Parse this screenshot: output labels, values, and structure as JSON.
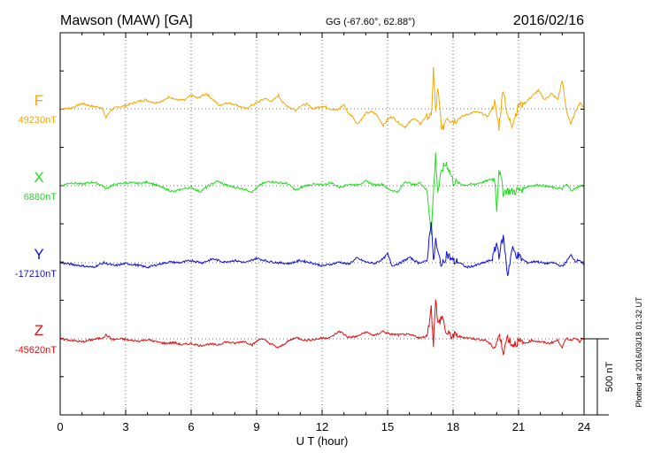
{
  "header": {
    "station": "Mawson (MAW)  [GA]",
    "coords": "GG (-67.60°,  62.88°)",
    "date": "2016/02/16"
  },
  "footer": {
    "plotted": "Plotted at 2016/03/18 01:32 UT"
  },
  "chart_data": {
    "type": "line",
    "xlabel": "U T (hour)",
    "xlim": [
      0,
      24
    ],
    "xticks": [
      "0",
      "3",
      "6",
      "9",
      "12",
      "15",
      "18",
      "21",
      "24"
    ],
    "scale_bar": "500 nT",
    "series": [
      {
        "name": "F",
        "baseline": "49230nT",
        "color": "#f5a800",
        "x": [
          0,
          0.5,
          1,
          1.5,
          1.9,
          2.1,
          2.3,
          2.6,
          3,
          3.5,
          3.9,
          4.3,
          4.7,
          5,
          5.3,
          5.7,
          6,
          6.3,
          6.7,
          7,
          7.3,
          7.6,
          8,
          8.5,
          9,
          9.4,
          9.6,
          9.8,
          10,
          10.2,
          10.5,
          10.8,
          11,
          11.3,
          11.6,
          12,
          12.4,
          12.7,
          13,
          13.2,
          13.4,
          13.6,
          13.8,
          14,
          14.3,
          14.5,
          14.8,
          15,
          15.2,
          15.5,
          15.8,
          16.2,
          16.5,
          16.8,
          17,
          17.1,
          17.2,
          17.3,
          17.5,
          17.7,
          18,
          18.3,
          18.6,
          19,
          19.3,
          19.6,
          19.9,
          20.1,
          20.3,
          20.5,
          20.7,
          21,
          21.3,
          21.6,
          21.9,
          22.2,
          22.5,
          22.8,
          23,
          23.2,
          23.4,
          23.6,
          23.8,
          24
        ],
        "y": [
          0,
          5,
          35,
          15,
          10,
          -60,
          -10,
          10,
          20,
          45,
          60,
          40,
          50,
          80,
          60,
          55,
          90,
          70,
          100,
          60,
          20,
          40,
          30,
          0,
          40,
          70,
          50,
          60,
          90,
          40,
          10,
          -10,
          20,
          30,
          0,
          20,
          0,
          -10,
          30,
          -30,
          -50,
          -100,
          -70,
          -30,
          -20,
          -40,
          -110,
          -70,
          -50,
          -90,
          -120,
          -60,
          -100,
          -40,
          -60,
          260,
          -20,
          120,
          -150,
          -50,
          -80,
          -60,
          -40,
          -20,
          -30,
          -50,
          40,
          -120,
          140,
          -60,
          -100,
          20,
          40,
          80,
          120,
          60,
          100,
          60,
          190,
          -20,
          -100,
          -20,
          40,
          10
        ]
      },
      {
        "name": "X",
        "baseline": "6880nT",
        "color": "#22dd22",
        "x": [
          0,
          0.5,
          1,
          1.5,
          1.9,
          2.1,
          2.4,
          2.8,
          3.2,
          3.6,
          4,
          4.4,
          4.8,
          5.2,
          5.6,
          6,
          6.4,
          6.8,
          7.2,
          7.6,
          8,
          8.4,
          8.8,
          9.2,
          9.6,
          10,
          10.4,
          10.8,
          11.2,
          11.6,
          12,
          12.4,
          12.8,
          13.2,
          13.6,
          14,
          14.4,
          14.8,
          15,
          15.2,
          15.5,
          15.8,
          16.2,
          16.5,
          16.8,
          17,
          17.1,
          17.2,
          17.3,
          17.5,
          17.7,
          18,
          18.5,
          19,
          19.5,
          19.9,
          20,
          20.1,
          20.3,
          20.5,
          20.7,
          21,
          21.5,
          22,
          22.5,
          23,
          23.2,
          23.4,
          23.6,
          23.8,
          24
        ],
        "y": [
          0,
          20,
          10,
          25,
          5,
          -20,
          5,
          15,
          20,
          15,
          25,
          5,
          -20,
          -40,
          -20,
          -10,
          -40,
          0,
          30,
          5,
          -10,
          -20,
          -40,
          10,
          30,
          20,
          15,
          -30,
          0,
          10,
          5,
          20,
          -10,
          10,
          5,
          30,
          5,
          10,
          -20,
          -30,
          -40,
          30,
          5,
          20,
          -30,
          -300,
          -50,
          200,
          -40,
          110,
          150,
          30,
          5,
          10,
          30,
          50,
          -150,
          120,
          -40,
          -30,
          -40,
          -30,
          0,
          5,
          -10,
          -20,
          10,
          -30,
          -20,
          0,
          0
        ]
      },
      {
        "name": "Y",
        "baseline": "-17210nT",
        "color": "#1111dd",
        "x": [
          0,
          0.5,
          1,
          1.5,
          2,
          2.5,
          3,
          3.5,
          4,
          4.5,
          5,
          5.5,
          6,
          6.5,
          7,
          7.5,
          8,
          8.5,
          9,
          9.5,
          10,
          10.5,
          11,
          11.5,
          12,
          12.4,
          12.8,
          13.2,
          13.6,
          14,
          14.4,
          14.8,
          15,
          15.2,
          15.6,
          16,
          16.4,
          16.8,
          17,
          17.1,
          17.2,
          17.3,
          17.5,
          17.7,
          18,
          18.3,
          18.6,
          19,
          19.4,
          19.8,
          20,
          20.1,
          20.3,
          20.5,
          20.7,
          21,
          21.4,
          21.8,
          22.2,
          22.6,
          23,
          23.2,
          23.4,
          23.6,
          23.8,
          24
        ],
        "y": [
          0,
          -10,
          -20,
          -30,
          0,
          -20,
          -5,
          -15,
          -30,
          -10,
          5,
          0,
          15,
          0,
          25,
          5,
          15,
          0,
          30,
          10,
          0,
          -5,
          15,
          0,
          -20,
          -10,
          5,
          -10,
          30,
          5,
          -5,
          25,
          60,
          -20,
          0,
          35,
          0,
          10,
          290,
          -10,
          150,
          60,
          -20,
          60,
          10,
          0,
          -30,
          -20,
          0,
          20,
          130,
          50,
          170,
          -80,
          90,
          40,
          0,
          10,
          -5,
          0,
          -25,
          10,
          50,
          10,
          20,
          -20
        ]
      },
      {
        "name": "Z",
        "baseline": "-45620nT",
        "color": "#dd1111",
        "x": [
          0,
          0.5,
          1,
          1.5,
          1.9,
          2.1,
          2.4,
          2.8,
          3.2,
          3.6,
          4,
          4.4,
          4.8,
          5.2,
          5.6,
          6,
          6.4,
          6.8,
          7.2,
          7.6,
          8,
          8.4,
          8.8,
          9.2,
          9.6,
          10,
          10.4,
          10.8,
          11.2,
          11.6,
          12,
          12.4,
          12.8,
          13.2,
          13.6,
          14,
          14.4,
          14.8,
          15,
          15.2,
          15.5,
          15.8,
          16.2,
          16.5,
          16.8,
          17,
          17.1,
          17.2,
          17.3,
          17.5,
          17.7,
          18,
          18.5,
          19,
          19.5,
          19.9,
          20.1,
          20.3,
          20.5,
          20.7,
          21,
          21.3,
          21.6,
          22,
          22.4,
          22.8,
          23,
          23.2,
          23.4,
          23.6,
          23.8,
          24
        ],
        "y": [
          0,
          -10,
          -20,
          -5,
          5,
          25,
          -5,
          0,
          -10,
          -15,
          -5,
          -20,
          -30,
          -25,
          -40,
          -30,
          -45,
          -35,
          -40,
          -20,
          -30,
          -15,
          -40,
          5,
          -30,
          -60,
          -20,
          10,
          -10,
          -5,
          5,
          10,
          50,
          10,
          15,
          45,
          20,
          50,
          35,
          30,
          25,
          30,
          20,
          5,
          20,
          200,
          -30,
          270,
          90,
          150,
          30,
          20,
          10,
          0,
          -10,
          -60,
          20,
          -80,
          15,
          -40,
          -20,
          -30,
          -10,
          -20,
          -30,
          -10,
          -55,
          5,
          -10,
          10,
          -20,
          5
        ]
      }
    ]
  }
}
